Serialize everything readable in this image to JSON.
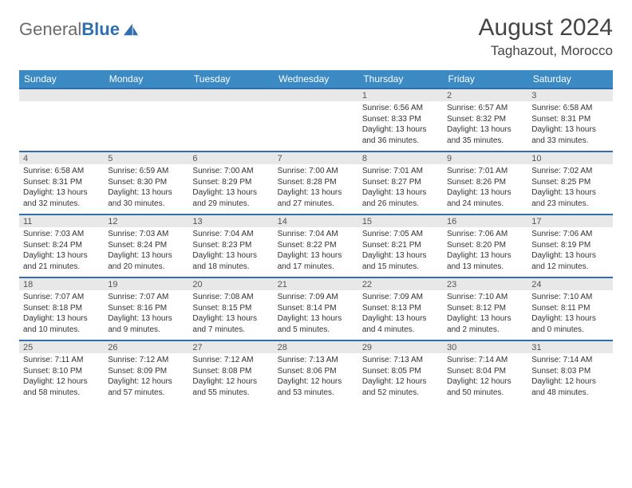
{
  "brand": {
    "name_gray": "General",
    "name_blue": "Blue"
  },
  "title": "August 2024",
  "location": "Taghazout, Morocco",
  "colors": {
    "header_bg": "#3b8ac4",
    "header_text": "#ffffff",
    "band_bg": "#e8e8e8",
    "band_border": "#2f6fb0",
    "page_bg": "#ffffff",
    "body_text": "#333333",
    "title_text": "#444444",
    "logo_gray": "#6b6b6b",
    "logo_blue": "#2f6fb0"
  },
  "day_names": [
    "Sunday",
    "Monday",
    "Tuesday",
    "Wednesday",
    "Thursday",
    "Friday",
    "Saturday"
  ],
  "weeks": [
    [
      {
        "n": "",
        "sunrise": "",
        "sunset": "",
        "daylight": ""
      },
      {
        "n": "",
        "sunrise": "",
        "sunset": "",
        "daylight": ""
      },
      {
        "n": "",
        "sunrise": "",
        "sunset": "",
        "daylight": ""
      },
      {
        "n": "",
        "sunrise": "",
        "sunset": "",
        "daylight": ""
      },
      {
        "n": "1",
        "sunrise": "Sunrise: 6:56 AM",
        "sunset": "Sunset: 8:33 PM",
        "daylight": "Daylight: 13 hours and 36 minutes."
      },
      {
        "n": "2",
        "sunrise": "Sunrise: 6:57 AM",
        "sunset": "Sunset: 8:32 PM",
        "daylight": "Daylight: 13 hours and 35 minutes."
      },
      {
        "n": "3",
        "sunrise": "Sunrise: 6:58 AM",
        "sunset": "Sunset: 8:31 PM",
        "daylight": "Daylight: 13 hours and 33 minutes."
      }
    ],
    [
      {
        "n": "4",
        "sunrise": "Sunrise: 6:58 AM",
        "sunset": "Sunset: 8:31 PM",
        "daylight": "Daylight: 13 hours and 32 minutes."
      },
      {
        "n": "5",
        "sunrise": "Sunrise: 6:59 AM",
        "sunset": "Sunset: 8:30 PM",
        "daylight": "Daylight: 13 hours and 30 minutes."
      },
      {
        "n": "6",
        "sunrise": "Sunrise: 7:00 AM",
        "sunset": "Sunset: 8:29 PM",
        "daylight": "Daylight: 13 hours and 29 minutes."
      },
      {
        "n": "7",
        "sunrise": "Sunrise: 7:00 AM",
        "sunset": "Sunset: 8:28 PM",
        "daylight": "Daylight: 13 hours and 27 minutes."
      },
      {
        "n": "8",
        "sunrise": "Sunrise: 7:01 AM",
        "sunset": "Sunset: 8:27 PM",
        "daylight": "Daylight: 13 hours and 26 minutes."
      },
      {
        "n": "9",
        "sunrise": "Sunrise: 7:01 AM",
        "sunset": "Sunset: 8:26 PM",
        "daylight": "Daylight: 13 hours and 24 minutes."
      },
      {
        "n": "10",
        "sunrise": "Sunrise: 7:02 AM",
        "sunset": "Sunset: 8:25 PM",
        "daylight": "Daylight: 13 hours and 23 minutes."
      }
    ],
    [
      {
        "n": "11",
        "sunrise": "Sunrise: 7:03 AM",
        "sunset": "Sunset: 8:24 PM",
        "daylight": "Daylight: 13 hours and 21 minutes."
      },
      {
        "n": "12",
        "sunrise": "Sunrise: 7:03 AM",
        "sunset": "Sunset: 8:24 PM",
        "daylight": "Daylight: 13 hours and 20 minutes."
      },
      {
        "n": "13",
        "sunrise": "Sunrise: 7:04 AM",
        "sunset": "Sunset: 8:23 PM",
        "daylight": "Daylight: 13 hours and 18 minutes."
      },
      {
        "n": "14",
        "sunrise": "Sunrise: 7:04 AM",
        "sunset": "Sunset: 8:22 PM",
        "daylight": "Daylight: 13 hours and 17 minutes."
      },
      {
        "n": "15",
        "sunrise": "Sunrise: 7:05 AM",
        "sunset": "Sunset: 8:21 PM",
        "daylight": "Daylight: 13 hours and 15 minutes."
      },
      {
        "n": "16",
        "sunrise": "Sunrise: 7:06 AM",
        "sunset": "Sunset: 8:20 PM",
        "daylight": "Daylight: 13 hours and 13 minutes."
      },
      {
        "n": "17",
        "sunrise": "Sunrise: 7:06 AM",
        "sunset": "Sunset: 8:19 PM",
        "daylight": "Daylight: 13 hours and 12 minutes."
      }
    ],
    [
      {
        "n": "18",
        "sunrise": "Sunrise: 7:07 AM",
        "sunset": "Sunset: 8:18 PM",
        "daylight": "Daylight: 13 hours and 10 minutes."
      },
      {
        "n": "19",
        "sunrise": "Sunrise: 7:07 AM",
        "sunset": "Sunset: 8:16 PM",
        "daylight": "Daylight: 13 hours and 9 minutes."
      },
      {
        "n": "20",
        "sunrise": "Sunrise: 7:08 AM",
        "sunset": "Sunset: 8:15 PM",
        "daylight": "Daylight: 13 hours and 7 minutes."
      },
      {
        "n": "21",
        "sunrise": "Sunrise: 7:09 AM",
        "sunset": "Sunset: 8:14 PM",
        "daylight": "Daylight: 13 hours and 5 minutes."
      },
      {
        "n": "22",
        "sunrise": "Sunrise: 7:09 AM",
        "sunset": "Sunset: 8:13 PM",
        "daylight": "Daylight: 13 hours and 4 minutes."
      },
      {
        "n": "23",
        "sunrise": "Sunrise: 7:10 AM",
        "sunset": "Sunset: 8:12 PM",
        "daylight": "Daylight: 13 hours and 2 minutes."
      },
      {
        "n": "24",
        "sunrise": "Sunrise: 7:10 AM",
        "sunset": "Sunset: 8:11 PM",
        "daylight": "Daylight: 13 hours and 0 minutes."
      }
    ],
    [
      {
        "n": "25",
        "sunrise": "Sunrise: 7:11 AM",
        "sunset": "Sunset: 8:10 PM",
        "daylight": "Daylight: 12 hours and 58 minutes."
      },
      {
        "n": "26",
        "sunrise": "Sunrise: 7:12 AM",
        "sunset": "Sunset: 8:09 PM",
        "daylight": "Daylight: 12 hours and 57 minutes."
      },
      {
        "n": "27",
        "sunrise": "Sunrise: 7:12 AM",
        "sunset": "Sunset: 8:08 PM",
        "daylight": "Daylight: 12 hours and 55 minutes."
      },
      {
        "n": "28",
        "sunrise": "Sunrise: 7:13 AM",
        "sunset": "Sunset: 8:06 PM",
        "daylight": "Daylight: 12 hours and 53 minutes."
      },
      {
        "n": "29",
        "sunrise": "Sunrise: 7:13 AM",
        "sunset": "Sunset: 8:05 PM",
        "daylight": "Daylight: 12 hours and 52 minutes."
      },
      {
        "n": "30",
        "sunrise": "Sunrise: 7:14 AM",
        "sunset": "Sunset: 8:04 PM",
        "daylight": "Daylight: 12 hours and 50 minutes."
      },
      {
        "n": "31",
        "sunrise": "Sunrise: 7:14 AM",
        "sunset": "Sunset: 8:03 PM",
        "daylight": "Daylight: 12 hours and 48 minutes."
      }
    ]
  ]
}
